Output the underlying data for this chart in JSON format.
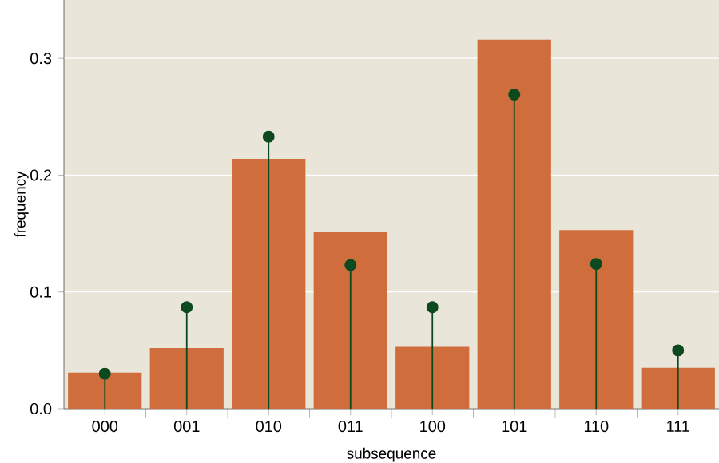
{
  "chart_data": {
    "type": "bar",
    "xlabel": "subsequence",
    "ylabel": "frequency",
    "categories": [
      "000",
      "001",
      "010",
      "011",
      "100",
      "101",
      "110",
      "111"
    ],
    "series": [
      {
        "color": "#cf6d3d",
        "values": [
          0.031,
          0.052,
          0.214,
          0.151,
          0.053,
          0.316,
          0.153,
          0.035
        ]
      },
      {
        "type": "lollipop",
        "color": "#0b4a1f",
        "marker": "circle",
        "values": [
          0.03,
          0.087,
          0.233,
          0.123,
          0.087,
          0.269,
          0.124,
          0.05
        ]
      }
    ],
    "ylim": [
      0,
      0.35
    ],
    "yticks": [
      {
        "value": 0,
        "label": "0.0"
      },
      0.1,
      0.2,
      0.3
    ],
    "grid": "y"
  }
}
